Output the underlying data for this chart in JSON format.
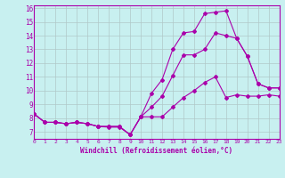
{
  "xlabel": "Windchill (Refroidissement éolien,°C)",
  "background_color": "#c8f0f0",
  "line_color": "#aa00aa",
  "grid_color": "#b0c8c8",
  "xlim": [
    0,
    23
  ],
  "ylim": [
    6.5,
    16.2
  ],
  "yticks": [
    7,
    8,
    9,
    10,
    11,
    12,
    13,
    14,
    15,
    16
  ],
  "xticks": [
    0,
    1,
    2,
    3,
    4,
    5,
    6,
    7,
    8,
    9,
    10,
    11,
    12,
    13,
    14,
    15,
    16,
    17,
    18,
    19,
    20,
    21,
    22,
    23
  ],
  "line1_x": [
    0,
    1,
    2,
    3,
    4,
    5,
    6,
    7,
    8,
    9,
    10,
    11,
    12,
    13,
    14,
    15,
    16,
    17,
    18,
    19,
    20,
    21,
    22,
    23
  ],
  "line1_y": [
    8.3,
    7.7,
    7.7,
    7.6,
    7.7,
    7.6,
    7.4,
    7.4,
    7.4,
    6.8,
    8.1,
    8.1,
    8.1,
    8.8,
    9.5,
    10.0,
    10.6,
    11.0,
    9.5,
    9.7,
    9.6,
    9.6,
    9.7,
    9.6
  ],
  "line2_x": [
    0,
    1,
    2,
    3,
    4,
    5,
    6,
    7,
    8,
    9,
    10,
    11,
    12,
    13,
    14,
    15,
    16,
    17,
    18,
    19,
    20,
    21,
    22,
    23
  ],
  "line2_y": [
    8.3,
    7.7,
    7.7,
    7.6,
    7.7,
    7.6,
    7.4,
    7.4,
    7.4,
    6.8,
    8.1,
    8.8,
    9.6,
    11.1,
    12.6,
    12.6,
    13.0,
    14.2,
    14.0,
    13.8,
    12.5,
    10.5,
    10.2,
    10.2
  ],
  "line3_x": [
    0,
    1,
    2,
    3,
    4,
    5,
    6,
    7,
    8,
    9,
    10,
    11,
    12,
    13,
    14,
    15,
    16,
    17,
    18,
    19,
    20,
    21,
    22,
    23
  ],
  "line3_y": [
    8.3,
    7.7,
    7.7,
    7.6,
    7.7,
    7.6,
    7.4,
    7.35,
    7.35,
    6.8,
    8.1,
    9.8,
    10.8,
    13.0,
    14.2,
    14.3,
    15.6,
    15.7,
    15.8,
    13.8,
    12.5,
    10.5,
    10.2,
    10.2
  ]
}
